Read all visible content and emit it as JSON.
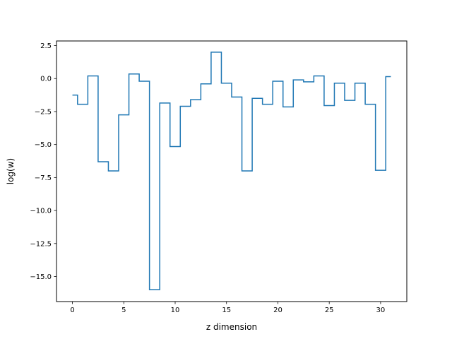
{
  "chart_data": {
    "type": "line",
    "drawstyle": "steps-mid",
    "title": "",
    "xlabel": "z dimension",
    "ylabel": "log(w)",
    "xlim": [
      -1.55,
      32.55
    ],
    "ylim": [
      -16.9,
      2.85
    ],
    "xticks": [
      0,
      5,
      10,
      15,
      20,
      25,
      30
    ],
    "xtick_labels": [
      "0",
      "5",
      "10",
      "15",
      "20",
      "25",
      "30"
    ],
    "yticks": [
      2.5,
      0.0,
      -2.5,
      -5.0,
      -7.5,
      -10.0,
      -12.5,
      -15.0
    ],
    "ytick_labels": [
      "2.5",
      "0.0",
      "−2.5",
      "−5.0",
      "−7.5",
      "−10.0",
      "−12.5",
      "−15.0"
    ],
    "grid": false,
    "series": [
      {
        "color": "#1f77b4",
        "x": [
          0,
          1,
          2,
          3,
          4,
          5,
          6,
          7,
          8,
          9,
          10,
          11,
          12,
          13,
          14,
          15,
          16,
          17,
          18,
          19,
          20,
          21,
          22,
          23,
          24,
          25,
          26,
          27,
          28,
          29,
          30,
          31
        ],
        "y": [
          -1.25,
          -1.95,
          0.2,
          -6.3,
          -7.0,
          -2.75,
          0.35,
          -0.2,
          -16.0,
          -1.85,
          -5.15,
          -2.1,
          -1.6,
          -0.4,
          2.0,
          -0.35,
          -1.4,
          -7.0,
          -1.5,
          -1.95,
          -0.2,
          -2.15,
          -0.1,
          -0.25,
          0.2,
          -2.05,
          -0.35,
          -1.65,
          -0.35,
          -1.95,
          -6.95,
          0.15
        ]
      }
    ]
  }
}
